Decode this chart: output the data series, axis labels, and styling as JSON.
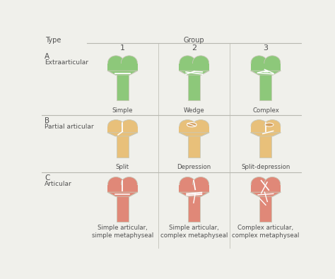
{
  "title_type": "Type",
  "title_group": "Group",
  "bg_color": "#f0f0eb",
  "row_labels_a": [
    "A",
    "Extraarticular"
  ],
  "row_labels_b": [
    "B",
    "Partial articular"
  ],
  "row_labels_c": [
    "C",
    "Articular"
  ],
  "col_labels": [
    "1",
    "2",
    "3"
  ],
  "cell_labels": [
    [
      "Simple",
      "Wedge",
      "Complex"
    ],
    [
      "Split",
      "Depression",
      "Split-depression"
    ],
    [
      "Simple articular,\nsimple metaphyseal",
      "Simple articular,\ncomplex metaphyseal",
      "Complex articular,\ncomplex metaphyseal"
    ]
  ],
  "row_colors": [
    "#8dc87a",
    "#e8c07a",
    "#e08878"
  ],
  "bone_edge": "#c8c8b8",
  "white_line": "#ffffff",
  "text_color": "#505050",
  "grid_line_color": "#b8b8b0",
  "header_bg": "#f0f0eb"
}
